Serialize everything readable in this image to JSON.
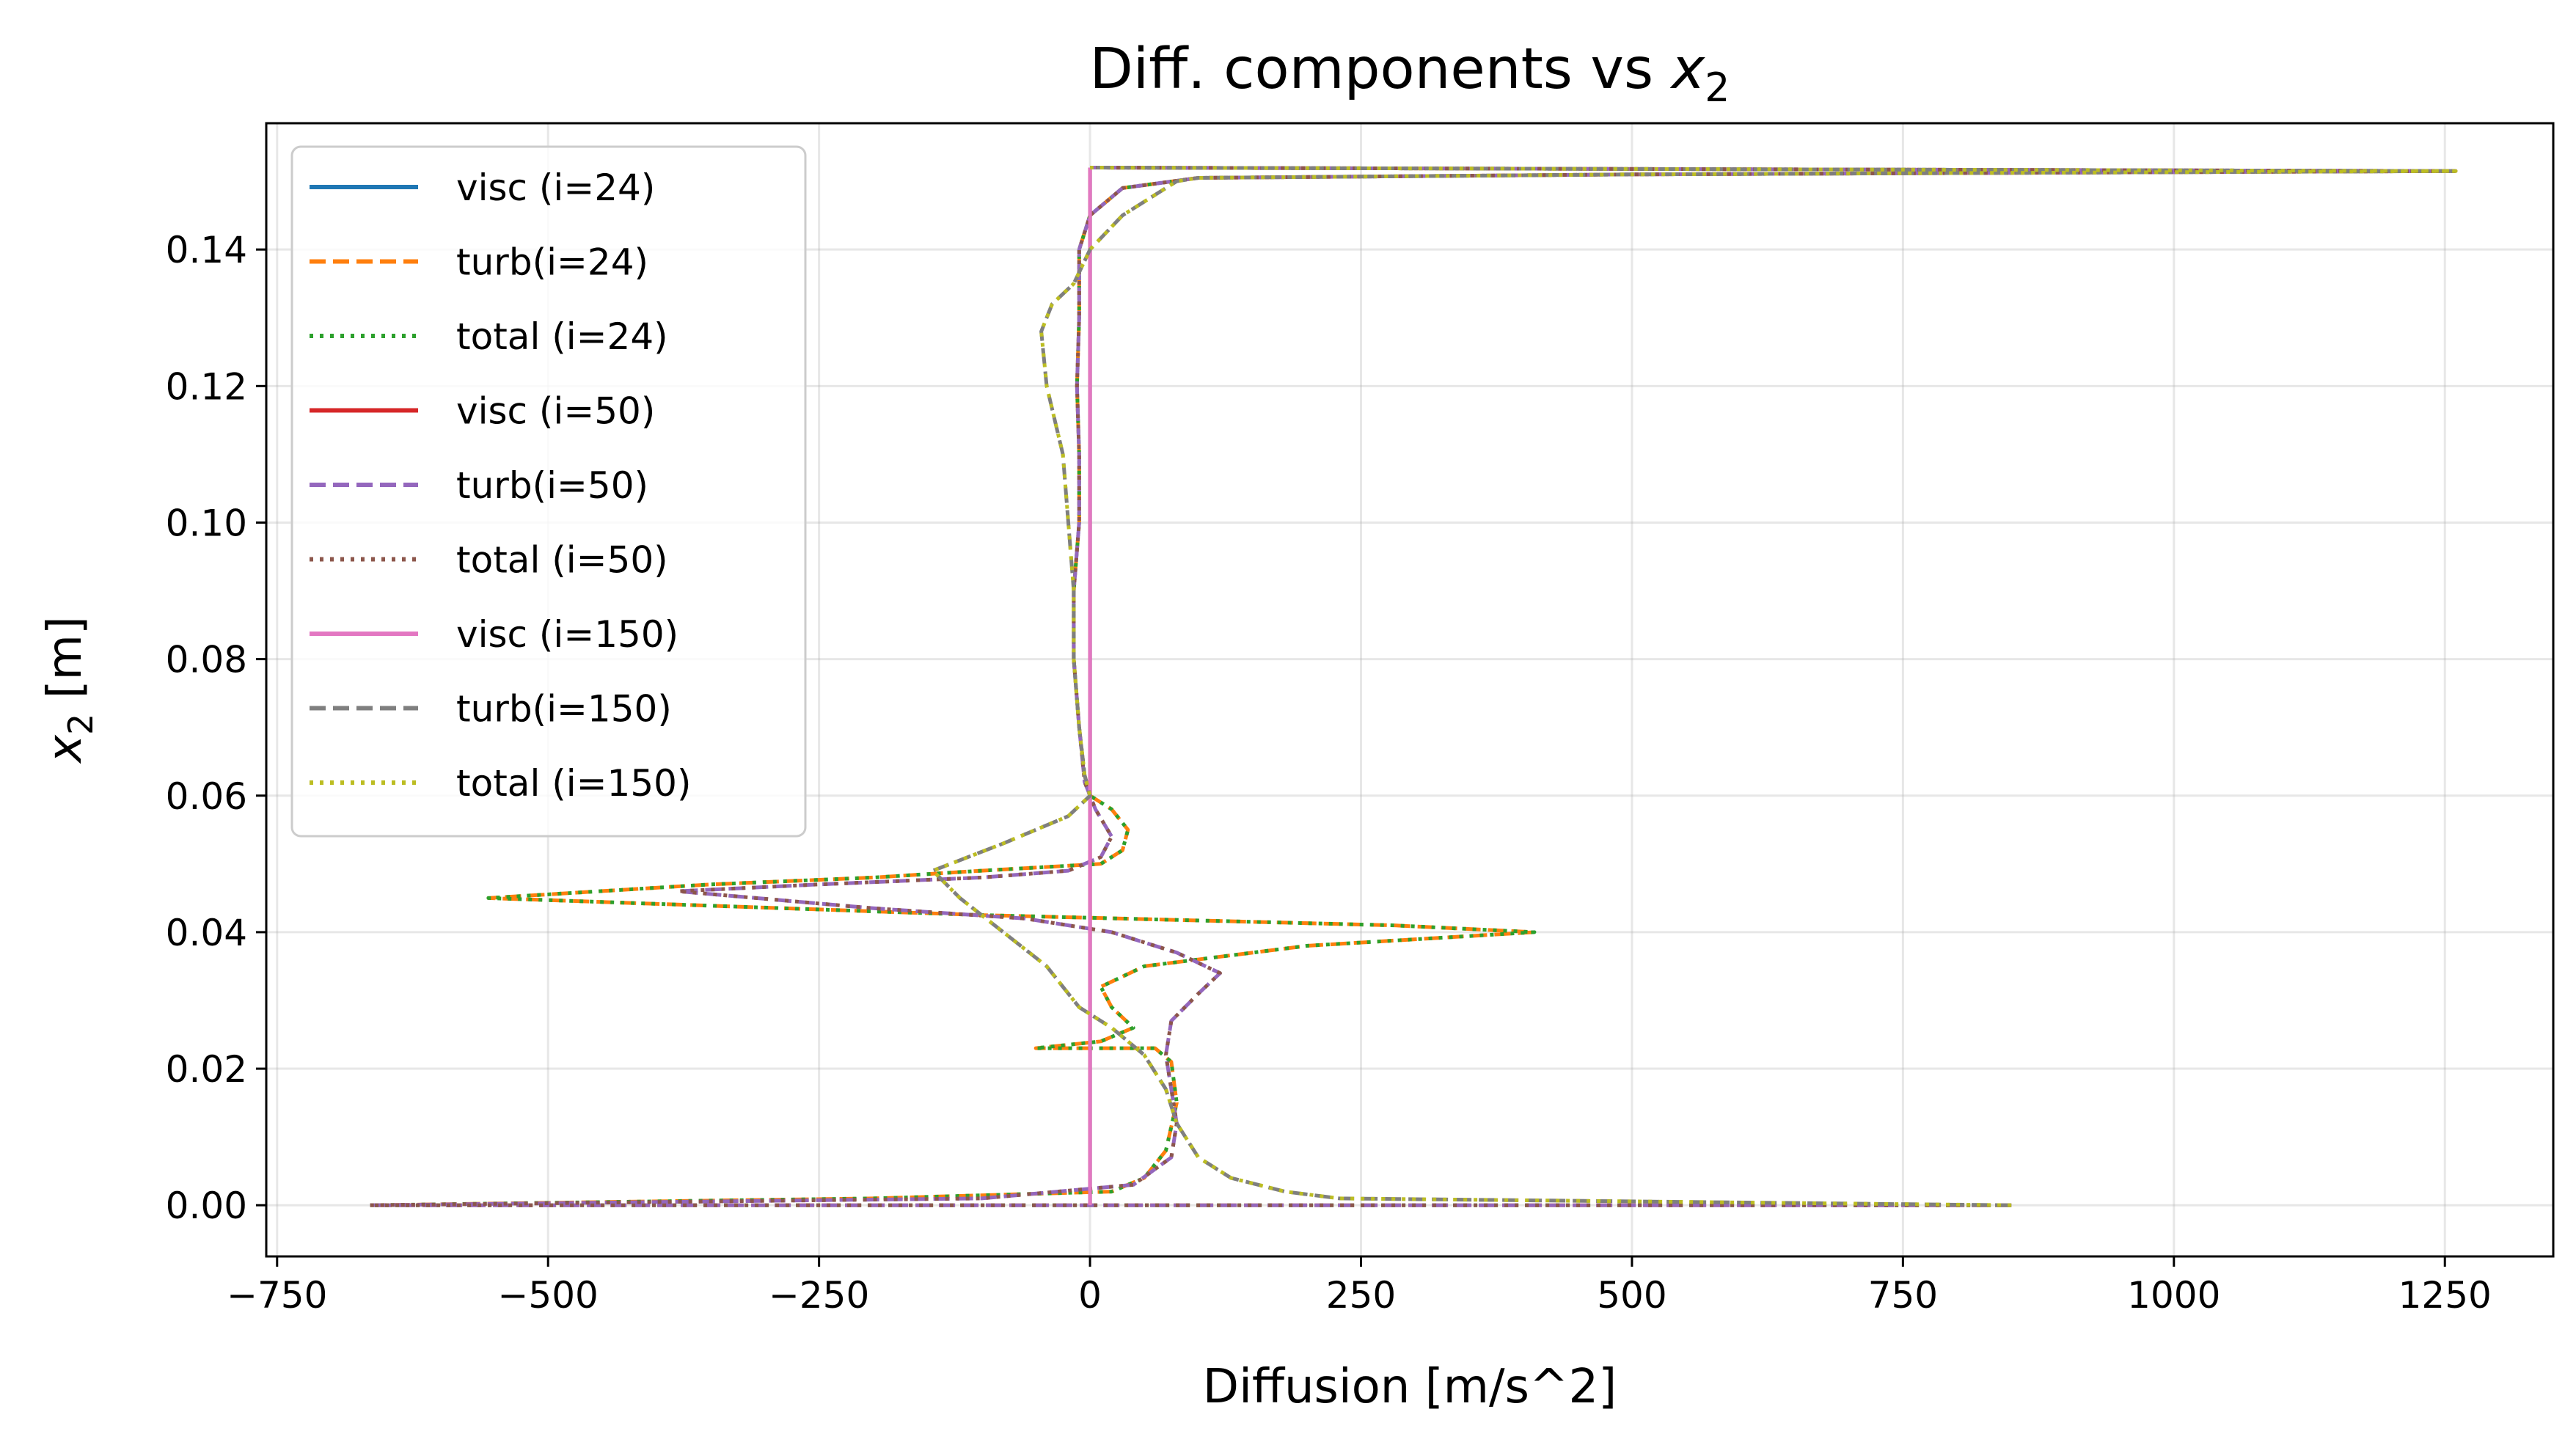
{
  "chart_data": {
    "type": "line",
    "title_text": "Diff. components vs ",
    "title_var": "x",
    "title_sub": "2",
    "xlabel": "Diffusion [m/s^2]",
    "ylabel_var": "x",
    "ylabel_sub": "2",
    "ylabel_unit": " [m]",
    "xlim": [
      -760,
      1350
    ],
    "ylim": [
      -0.0075,
      0.1585
    ],
    "xticks": [
      -750,
      -500,
      -250,
      0,
      250,
      500,
      750,
      1000,
      1250
    ],
    "xtick_labels": [
      "−750",
      "−500",
      "−250",
      "0",
      "250",
      "500",
      "750",
      "1000",
      "1250"
    ],
    "yticks": [
      0.0,
      0.02,
      0.04,
      0.06,
      0.08,
      0.1,
      0.12,
      0.14
    ],
    "ytick_labels": [
      "0.00",
      "0.02",
      "0.04",
      "0.06",
      "0.08",
      "0.10",
      "0.12",
      "0.14"
    ],
    "grid": true,
    "legend_position": "upper-left",
    "series": [
      {
        "name": "visc (i=24)",
        "color": "#1f77b4",
        "dash": "solid",
        "profile": "visc",
        "points": [
          [
            0,
            0.0
          ],
          [
            0,
            0.152
          ]
        ]
      },
      {
        "name": "turb(i=24)",
        "color": "#ff7f0e",
        "dash": "dashed",
        "profile": "p24",
        "points": [
          [
            850,
            0.0
          ],
          [
            200,
            0.0
          ],
          [
            0,
            0.0
          ],
          [
            -665,
            0.0
          ],
          [
            -200,
            0.001
          ],
          [
            20,
            0.002
          ],
          [
            50,
            0.004
          ],
          [
            70,
            0.008
          ],
          [
            80,
            0.015
          ],
          [
            75,
            0.021
          ],
          [
            60,
            0.023
          ],
          [
            -50,
            0.023
          ],
          [
            10,
            0.024
          ],
          [
            40,
            0.026
          ],
          [
            20,
            0.029
          ],
          [
            10,
            0.032
          ],
          [
            50,
            0.035
          ],
          [
            200,
            0.038
          ],
          [
            410,
            0.04
          ],
          [
            280,
            0.041
          ],
          [
            -100,
            0.0425
          ],
          [
            -555,
            0.045
          ],
          [
            -350,
            0.047
          ],
          [
            -200,
            0.048
          ],
          [
            -100,
            0.049
          ],
          [
            10,
            0.05
          ],
          [
            30,
            0.052
          ],
          [
            35,
            0.055
          ],
          [
            20,
            0.058
          ],
          [
            0,
            0.06
          ],
          [
            -5,
            0.063
          ],
          [
            -10,
            0.07
          ],
          [
            -15,
            0.08
          ],
          [
            -15,
            0.09
          ],
          [
            -10,
            0.1
          ],
          [
            -10,
            0.11
          ],
          [
            -12,
            0.12
          ],
          [
            -10,
            0.13
          ],
          [
            -10,
            0.14
          ],
          [
            0,
            0.145
          ],
          [
            30,
            0.149
          ],
          [
            100,
            0.1505
          ],
          [
            500,
            0.151
          ],
          [
            1260,
            0.1515
          ],
          [
            0,
            0.152
          ]
        ]
      },
      {
        "name": "total (i=24)",
        "color": "#2ca02c",
        "dash": "dotted",
        "profile": "p24",
        "points": [
          [
            850,
            0.0
          ],
          [
            200,
            0.0
          ],
          [
            0,
            0.0
          ],
          [
            -665,
            0.0
          ],
          [
            -200,
            0.001
          ],
          [
            20,
            0.002
          ],
          [
            50,
            0.004
          ],
          [
            70,
            0.008
          ],
          [
            80,
            0.015
          ],
          [
            75,
            0.021
          ],
          [
            60,
            0.023
          ],
          [
            -50,
            0.023
          ],
          [
            10,
            0.024
          ],
          [
            40,
            0.026
          ],
          [
            20,
            0.029
          ],
          [
            10,
            0.032
          ],
          [
            50,
            0.035
          ],
          [
            200,
            0.038
          ],
          [
            410,
            0.04
          ],
          [
            280,
            0.041
          ],
          [
            -100,
            0.0425
          ],
          [
            -555,
            0.045
          ],
          [
            -350,
            0.047
          ],
          [
            -200,
            0.048
          ],
          [
            -100,
            0.049
          ],
          [
            10,
            0.05
          ],
          [
            30,
            0.052
          ],
          [
            35,
            0.055
          ],
          [
            20,
            0.058
          ],
          [
            0,
            0.06
          ],
          [
            -5,
            0.063
          ],
          [
            -10,
            0.07
          ],
          [
            -15,
            0.08
          ],
          [
            -15,
            0.09
          ],
          [
            -10,
            0.1
          ],
          [
            -10,
            0.11
          ],
          [
            -12,
            0.12
          ],
          [
            -10,
            0.13
          ],
          [
            -10,
            0.14
          ],
          [
            0,
            0.145
          ],
          [
            30,
            0.149
          ],
          [
            100,
            0.1505
          ],
          [
            500,
            0.151
          ],
          [
            1260,
            0.1515
          ],
          [
            0,
            0.152
          ]
        ]
      },
      {
        "name": "visc (i=50)",
        "color": "#d62728",
        "dash": "solid",
        "profile": "visc",
        "points": [
          [
            0,
            0.0
          ],
          [
            0,
            0.152
          ]
        ]
      },
      {
        "name": "turb(i=50)",
        "color": "#9467bd",
        "dash": "dashed",
        "profile": "p50",
        "points": [
          [
            850,
            0.0
          ],
          [
            300,
            0.0
          ],
          [
            0,
            0.0
          ],
          [
            -665,
            0.0
          ],
          [
            -100,
            0.001
          ],
          [
            40,
            0.003
          ],
          [
            75,
            0.007
          ],
          [
            80,
            0.012
          ],
          [
            75,
            0.017
          ],
          [
            70,
            0.022
          ],
          [
            75,
            0.027
          ],
          [
            100,
            0.031
          ],
          [
            120,
            0.034
          ],
          [
            80,
            0.037
          ],
          [
            20,
            0.04
          ],
          [
            -60,
            0.042
          ],
          [
            -200,
            0.0435
          ],
          [
            -380,
            0.046
          ],
          [
            -250,
            0.047
          ],
          [
            -100,
            0.048
          ],
          [
            -20,
            0.049
          ],
          [
            10,
            0.051
          ],
          [
            20,
            0.054
          ],
          [
            5,
            0.058
          ],
          [
            -5,
            0.062
          ],
          [
            -10,
            0.07
          ],
          [
            -15,
            0.08
          ],
          [
            -15,
            0.09
          ],
          [
            -10,
            0.1
          ],
          [
            -10,
            0.11
          ],
          [
            -12,
            0.12
          ],
          [
            -10,
            0.13
          ],
          [
            -10,
            0.14
          ],
          [
            0,
            0.145
          ],
          [
            30,
            0.149
          ],
          [
            100,
            0.1505
          ],
          [
            500,
            0.151
          ],
          [
            1260,
            0.1515
          ],
          [
            0,
            0.152
          ]
        ]
      },
      {
        "name": "total (i=50)",
        "color": "#8c564b",
        "dash": "dotted",
        "profile": "p50",
        "points": [
          [
            850,
            0.0
          ],
          [
            300,
            0.0
          ],
          [
            0,
            0.0
          ],
          [
            -665,
            0.0
          ],
          [
            -100,
            0.001
          ],
          [
            40,
            0.003
          ],
          [
            75,
            0.007
          ],
          [
            80,
            0.012
          ],
          [
            75,
            0.017
          ],
          [
            70,
            0.022
          ],
          [
            75,
            0.027
          ],
          [
            100,
            0.031
          ],
          [
            120,
            0.034
          ],
          [
            80,
            0.037
          ],
          [
            20,
            0.04
          ],
          [
            -60,
            0.042
          ],
          [
            -200,
            0.0435
          ],
          [
            -380,
            0.046
          ],
          [
            -250,
            0.047
          ],
          [
            -100,
            0.048
          ],
          [
            -20,
            0.049
          ],
          [
            10,
            0.051
          ],
          [
            20,
            0.054
          ],
          [
            5,
            0.058
          ],
          [
            -5,
            0.062
          ],
          [
            -10,
            0.07
          ],
          [
            -15,
            0.08
          ],
          [
            -15,
            0.09
          ],
          [
            -10,
            0.1
          ],
          [
            -10,
            0.11
          ],
          [
            -12,
            0.12
          ],
          [
            -10,
            0.13
          ],
          [
            -10,
            0.14
          ],
          [
            0,
            0.145
          ],
          [
            30,
            0.149
          ],
          [
            100,
            0.1505
          ],
          [
            500,
            0.151
          ],
          [
            1260,
            0.1515
          ],
          [
            0,
            0.152
          ]
        ]
      },
      {
        "name": "visc (i=150)",
        "color": "#e377c2",
        "dash": "solid",
        "profile": "visc",
        "points": [
          [
            0,
            0.0
          ],
          [
            0,
            0.152
          ]
        ]
      },
      {
        "name": "turb(i=150)",
        "color": "#7f7f7f",
        "dash": "dashed",
        "profile": "p150",
        "points": [
          [
            850,
            0.0
          ],
          [
            230,
            0.001
          ],
          [
            180,
            0.002
          ],
          [
            130,
            0.004
          ],
          [
            100,
            0.007
          ],
          [
            80,
            0.012
          ],
          [
            70,
            0.017
          ],
          [
            50,
            0.022
          ],
          [
            20,
            0.026
          ],
          [
            -10,
            0.029
          ],
          [
            -20,
            0.031
          ],
          [
            -40,
            0.035
          ],
          [
            -80,
            0.04
          ],
          [
            -120,
            0.045
          ],
          [
            -145,
            0.049
          ],
          [
            -80,
            0.053
          ],
          [
            -20,
            0.057
          ],
          [
            0,
            0.06
          ],
          [
            -5,
            0.063
          ],
          [
            -10,
            0.07
          ],
          [
            -15,
            0.08
          ],
          [
            -15,
            0.09
          ],
          [
            -20,
            0.1
          ],
          [
            -25,
            0.11
          ],
          [
            -40,
            0.12
          ],
          [
            -45,
            0.128
          ],
          [
            -35,
            0.132
          ],
          [
            -15,
            0.135
          ],
          [
            0,
            0.14
          ],
          [
            30,
            0.145
          ],
          [
            80,
            0.15
          ],
          [
            100,
            0.1505
          ],
          [
            500,
            0.151
          ],
          [
            1260,
            0.1515
          ],
          [
            0,
            0.152
          ]
        ]
      },
      {
        "name": "total (i=150)",
        "color": "#bcbd22",
        "dash": "dotted",
        "profile": "p150",
        "points": [
          [
            850,
            0.0
          ],
          [
            230,
            0.001
          ],
          [
            180,
            0.002
          ],
          [
            130,
            0.004
          ],
          [
            100,
            0.007
          ],
          [
            80,
            0.012
          ],
          [
            70,
            0.017
          ],
          [
            50,
            0.022
          ],
          [
            20,
            0.026
          ],
          [
            -10,
            0.029
          ],
          [
            -20,
            0.031
          ],
          [
            -40,
            0.035
          ],
          [
            -80,
            0.04
          ],
          [
            -120,
            0.045
          ],
          [
            -145,
            0.049
          ],
          [
            -80,
            0.053
          ],
          [
            -20,
            0.057
          ],
          [
            0,
            0.06
          ],
          [
            -5,
            0.063
          ],
          [
            -10,
            0.07
          ],
          [
            -15,
            0.08
          ],
          [
            -15,
            0.09
          ],
          [
            -20,
            0.1
          ],
          [
            -25,
            0.11
          ],
          [
            -40,
            0.12
          ],
          [
            -45,
            0.128
          ],
          [
            -35,
            0.132
          ],
          [
            -15,
            0.135
          ],
          [
            0,
            0.14
          ],
          [
            30,
            0.145
          ],
          [
            80,
            0.15
          ],
          [
            100,
            0.1505
          ],
          [
            500,
            0.151
          ],
          [
            1260,
            0.1515
          ],
          [
            0,
            0.152
          ]
        ]
      }
    ]
  }
}
